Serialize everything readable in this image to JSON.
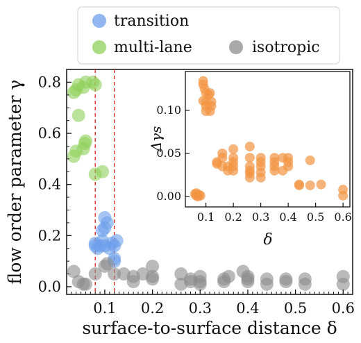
{
  "chart_data": [
    {
      "type": "scatter",
      "xlabel": "surface-to-surface distance δ",
      "ylabel": "flow order parameter γ",
      "xlim": [
        0.02,
        0.62
      ],
      "ylim": [
        -0.03,
        0.85
      ],
      "xticks": [
        0.1,
        0.2,
        0.3,
        0.4,
        0.5,
        0.6
      ],
      "xtick_labels": [
        "0.1",
        "0.2",
        "0.3",
        "0.4",
        "0.5",
        "0.6"
      ],
      "yticks": [
        0.0,
        0.2,
        0.4,
        0.6,
        0.8
      ],
      "ytick_labels": [
        "0.0",
        "0.2",
        "0.4",
        "0.6",
        "0.8"
      ],
      "vlines": [
        0.08,
        0.12
      ],
      "vline_color": "#e0302a",
      "legend": {
        "placement": "top (above plot)",
        "entries": [
          {
            "label": "transition",
            "color": "#6d9eeb"
          },
          {
            "label": "multi-lane",
            "color": "#8fd05a"
          },
          {
            "label": "isotropic",
            "color": "#8c8c8c"
          }
        ]
      },
      "series": [
        {
          "name": "multi-lane",
          "color": "#8fd05a",
          "points": [
            [
              0.035,
              0.76
            ],
            [
              0.04,
              0.77
            ],
            [
              0.045,
              0.79
            ],
            [
              0.055,
              0.78
            ],
            [
              0.06,
              0.8
            ],
            [
              0.075,
              0.8
            ],
            [
              0.08,
              0.79
            ],
            [
              0.045,
              0.67
            ],
            [
              0.055,
              0.54
            ],
            [
              0.06,
              0.57
            ],
            [
              0.058,
              0.56
            ],
            [
              0.035,
              0.51
            ],
            [
              0.04,
              0.53
            ],
            [
              0.08,
              0.44
            ],
            [
              0.095,
              0.45
            ]
          ]
        },
        {
          "name": "transition",
          "color": "#6d9eeb",
          "points": [
            [
              0.08,
              0.16
            ],
            [
              0.08,
              0.17
            ],
            [
              0.085,
              0.15
            ],
            [
              0.09,
              0.16
            ],
            [
              0.095,
              0.18
            ],
            [
              0.1,
              0.16
            ],
            [
              0.1,
              0.27
            ],
            [
              0.095,
              0.22
            ],
            [
              0.1,
              0.23
            ],
            [
              0.105,
              0.25
            ],
            [
              0.11,
              0.15
            ],
            [
              0.115,
              0.17
            ],
            [
              0.12,
              0.11
            ],
            [
              0.12,
              0.1
            ],
            [
              0.125,
              0.18
            ],
            [
              0.12,
              0.16
            ]
          ]
        },
        {
          "name": "isotropic",
          "color": "#8c8c8c",
          "points": [
            [
              0.035,
              0.06
            ],
            [
              0.045,
              0.02
            ],
            [
              0.055,
              0.01
            ],
            [
              0.06,
              0.01
            ],
            [
              0.08,
              0.05
            ],
            [
              0.1,
              0.08
            ],
            [
              0.105,
              0.09
            ],
            [
              0.12,
              0.05
            ],
            [
              0.14,
              0.05
            ],
            [
              0.16,
              0.04
            ],
            [
              0.16,
              0.02
            ],
            [
              0.18,
              0.05
            ],
            [
              0.2,
              0.04
            ],
            [
              0.2,
              0.08
            ],
            [
              0.2,
              0.03
            ],
            [
              0.26,
              0.05
            ],
            [
              0.26,
              0.01
            ],
            [
              0.28,
              0.02
            ],
            [
              0.28,
              0.03
            ],
            [
              0.3,
              0.02
            ],
            [
              0.3,
              0.04
            ],
            [
              0.3,
              0.01
            ],
            [
              0.35,
              0.03
            ],
            [
              0.35,
              0.02
            ],
            [
              0.36,
              0.04
            ],
            [
              0.39,
              0.06
            ],
            [
              0.4,
              0.03
            ],
            [
              0.4,
              0.02
            ],
            [
              0.4,
              0.04
            ],
            [
              0.44,
              0.01
            ],
            [
              0.44,
              0.03
            ],
            [
              0.48,
              0.02
            ],
            [
              0.48,
              0.03
            ],
            [
              0.52,
              0.03
            ],
            [
              0.52,
              0.01
            ],
            [
              0.6,
              0.01
            ],
            [
              0.6,
              0.04
            ]
          ]
        }
      ]
    },
    {
      "type": "scatter",
      "role": "inset",
      "xlabel": "δ",
      "ylabel": "Δγs",
      "xlim": [
        0.025,
        0.625
      ],
      "ylim": [
        -0.012,
        0.145
      ],
      "xticks": [
        0.1,
        0.2,
        0.3,
        0.4,
        0.5,
        0.6
      ],
      "xtick_labels": [
        "0.1",
        "0.2",
        "0.3",
        "0.4",
        "0.5",
        "0.6"
      ],
      "yticks": [
        0.0,
        0.05,
        0.1
      ],
      "ytick_labels": [
        "0.00",
        "0.05",
        "0.10"
      ],
      "series": [
        {
          "color": "#f29441",
          "points": [
            [
              0.06,
              0.003
            ],
            [
              0.065,
              0.001
            ],
            [
              0.07,
              0.0
            ],
            [
              0.075,
              0.002
            ],
            [
              0.08,
              0.001
            ],
            [
              0.065,
              0.004
            ],
            [
              0.09,
              0.13
            ],
            [
              0.09,
              0.134
            ],
            [
              0.095,
              0.125
            ],
            [
              0.1,
              0.12
            ],
            [
              0.1,
              0.11
            ],
            [
              0.1,
              0.105
            ],
            [
              0.11,
              0.118
            ],
            [
              0.115,
              0.12
            ],
            [
              0.12,
              0.11
            ],
            [
              0.12,
              0.105
            ],
            [
              0.115,
              0.099
            ],
            [
              0.1,
              0.099
            ],
            [
              0.09,
              0.111
            ],
            [
              0.14,
              0.038
            ],
            [
              0.14,
              0.04
            ],
            [
              0.16,
              0.045
            ],
            [
              0.16,
              0.035
            ],
            [
              0.16,
              0.05
            ],
            [
              0.18,
              0.03
            ],
            [
              0.18,
              0.035
            ],
            [
              0.2,
              0.055
            ],
            [
              0.2,
              0.045
            ],
            [
              0.2,
              0.04
            ],
            [
              0.2,
              0.03
            ],
            [
              0.2,
              0.035
            ],
            [
              0.26,
              0.058
            ],
            [
              0.26,
              0.045
            ],
            [
              0.26,
              0.035
            ],
            [
              0.26,
              0.03
            ],
            [
              0.26,
              0.022
            ],
            [
              0.26,
              0.027
            ],
            [
              0.3,
              0.045
            ],
            [
              0.3,
              0.04
            ],
            [
              0.3,
              0.035
            ],
            [
              0.3,
              0.028
            ],
            [
              0.3,
              0.022
            ],
            [
              0.35,
              0.04
            ],
            [
              0.35,
              0.035
            ],
            [
              0.35,
              0.03
            ],
            [
              0.35,
              0.045
            ],
            [
              0.38,
              0.045
            ],
            [
              0.38,
              0.03
            ],
            [
              0.4,
              0.045
            ],
            [
              0.4,
              0.04
            ],
            [
              0.4,
              0.035
            ],
            [
              0.44,
              0.014
            ],
            [
              0.44,
              0.013
            ],
            [
              0.48,
              0.042
            ],
            [
              0.48,
              0.013
            ],
            [
              0.52,
              0.014
            ],
            [
              0.6,
              0.008
            ],
            [
              0.6,
              0.001
            ]
          ]
        }
      ]
    }
  ]
}
